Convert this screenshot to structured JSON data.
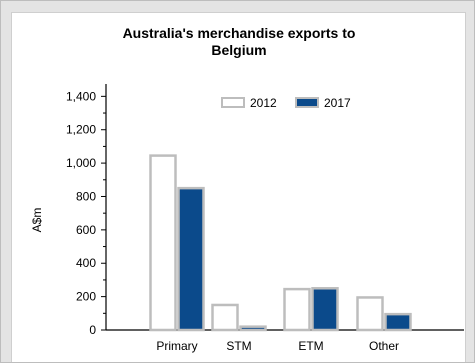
{
  "chart_data": {
    "type": "bar",
    "title_lines": [
      "Australia's merchandise exports to",
      "Belgium"
    ],
    "ylabel": "A$m",
    "xlabel": "",
    "categories": [
      "Primary",
      "STM",
      "ETM",
      "Other"
    ],
    "series": [
      {
        "name": "2012",
        "values": [
          1045,
          150,
          245,
          195
        ],
        "fill": "#ffffff",
        "border": "#bdbdbd"
      },
      {
        "name": "2017",
        "values": [
          850,
          20,
          250,
          95
        ],
        "fill": "#0b4a8b",
        "border": "#bdbdbd"
      }
    ],
    "yticks": [
      "0",
      "200",
      "400",
      "600",
      "800",
      "1,000",
      "1,200",
      "1,400"
    ],
    "ylim": [
      0,
      1450
    ],
    "grid": false,
    "legend_position": "top"
  }
}
